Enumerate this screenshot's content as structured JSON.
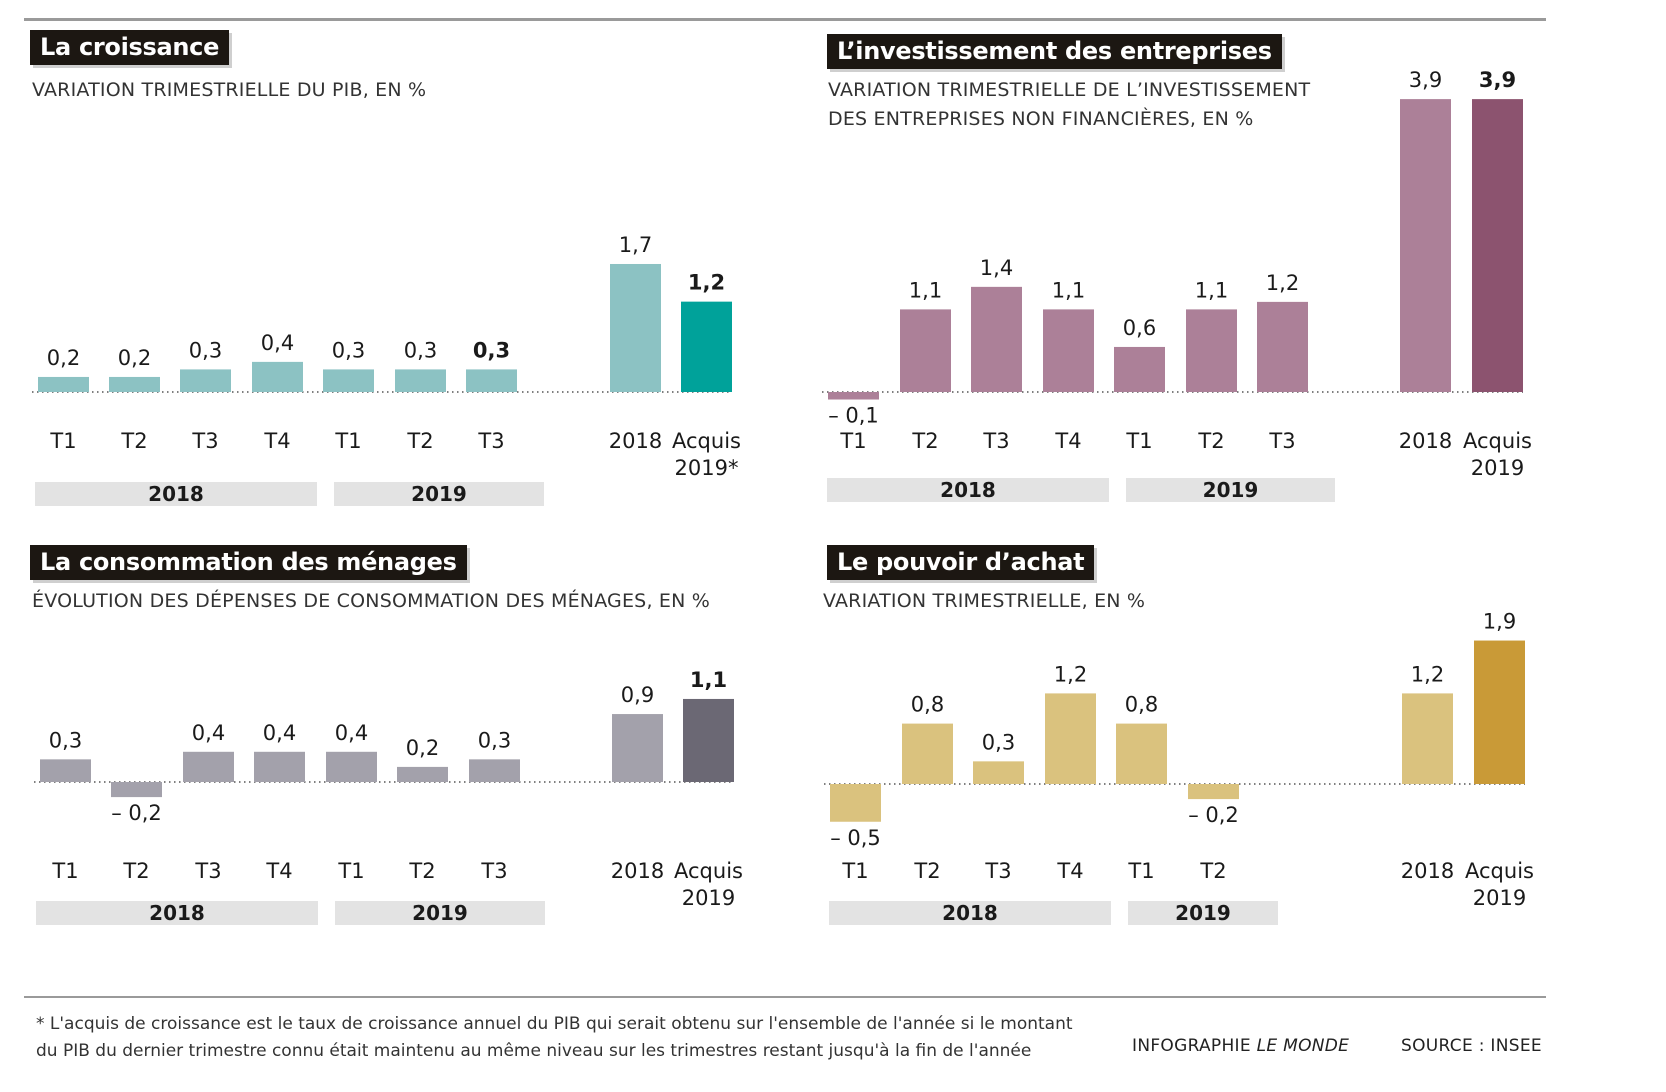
{
  "footnote": {
    "line1": "* L'acquis de croissance est le taux de croissance annuel du PIB qui serait obtenu sur l'ensemble de l'année si le montant",
    "line2": "du PIB du dernier trimestre connu était maintenu au même niveau sur les trimestres restant jusqu'à la fin de l'année"
  },
  "credit": {
    "prefix": "INFOGRAPHIE ",
    "outlet": "LE MONDE"
  },
  "source": "SOURCE : INSEE",
  "chart_data": [
    {
      "type": "bar",
      "title": "La croissance",
      "subtitle": [
        "VARIATION TRIMESTRIELLE DU PIB, EN %"
      ],
      "categories": [
        "T1",
        "T2",
        "T3",
        "T4",
        "T1",
        "T2",
        "T3",
        "2018",
        "Acquis 2019*"
      ],
      "values": [
        0.2,
        0.2,
        0.3,
        0.4,
        0.3,
        0.3,
        0.3,
        1.7,
        1.2
      ],
      "value_labels": [
        "0,2",
        "0,2",
        "0,3",
        "0,4",
        "0,3",
        "0,3",
        "0,3",
        "1,7",
        "1,2"
      ],
      "bold_labels": [
        6,
        8
      ],
      "groups": [
        {
          "label": "2018",
          "span": [
            0,
            3
          ]
        },
        {
          "label": "2019",
          "span": [
            4,
            6
          ]
        }
      ],
      "colors": {
        "light": "#8cc2c3",
        "dark": "#00a29a"
      }
    },
    {
      "type": "bar",
      "title": "L’investissement des entreprises",
      "subtitle": [
        "VARIATION TRIMESTRIELLE DE L’INVESTISSEMENT",
        "DES ENTREPRISES NON FINANCIÈRES, EN %"
      ],
      "categories": [
        "T1",
        "T2",
        "T3",
        "T4",
        "T1",
        "T2",
        "T3",
        "2018",
        "Acquis 2019"
      ],
      "values": [
        -0.1,
        1.1,
        1.4,
        1.1,
        0.6,
        1.1,
        1.2,
        3.9,
        3.9
      ],
      "value_labels": [
        "– 0,1",
        "1,1",
        "1,4",
        "1,1",
        "0,6",
        "1,1",
        "1,2",
        "3,9",
        "3,9"
      ],
      "bold_labels": [
        8
      ],
      "groups": [
        {
          "label": "2018",
          "span": [
            0,
            3
          ]
        },
        {
          "label": "2019",
          "span": [
            4,
            6
          ]
        }
      ],
      "colors": {
        "light": "#ac8098",
        "dark": "#8c536f"
      }
    },
    {
      "type": "bar",
      "title": "La consommation des ménages",
      "subtitle": [
        "ÉVOLUTION DES DÉPENSES DE CONSOMMATION DES MÉNAGES, EN %"
      ],
      "categories": [
        "T1",
        "T2",
        "T3",
        "T4",
        "T1",
        "T2",
        "T3",
        "2018",
        "Acquis 2019"
      ],
      "values": [
        0.3,
        -0.2,
        0.4,
        0.4,
        0.4,
        0.2,
        0.3,
        0.9,
        1.1
      ],
      "value_labels": [
        "0,3",
        "– 0,2",
        "0,4",
        "0,4",
        "0,4",
        "0,2",
        "0,3",
        "0,9",
        "1,1"
      ],
      "bold_labels": [
        8
      ],
      "groups": [
        {
          "label": "2018",
          "span": [
            0,
            3
          ]
        },
        {
          "label": "2019",
          "span": [
            4,
            6
          ]
        }
      ],
      "colors": {
        "light": "#a3a1ab",
        "dark": "#6b6874"
      }
    },
    {
      "type": "bar",
      "title": "Le pouvoir d’achat",
      "subtitle": [
        "VARIATION TRIMESTRIELLE, EN %"
      ],
      "categories": [
        "T1",
        "T2",
        "T3",
        "T4",
        "T1",
        "T2",
        "2018",
        "Acquis 2019"
      ],
      "values": [
        -0.5,
        0.8,
        0.3,
        1.2,
        0.8,
        -0.2,
        1.2,
        1.9
      ],
      "value_labels": [
        "– 0,5",
        "0,8",
        "0,3",
        "1,2",
        "0,8",
        "– 0,2",
        "1,2",
        "1,9"
      ],
      "bold_labels": [],
      "groups": [
        {
          "label": "2018",
          "span": [
            0,
            3
          ]
        },
        {
          "label": "2019",
          "span": [
            4,
            5
          ]
        }
      ],
      "colors": {
        "light": "#dac27e",
        "dark": "#c99a37"
      }
    }
  ]
}
